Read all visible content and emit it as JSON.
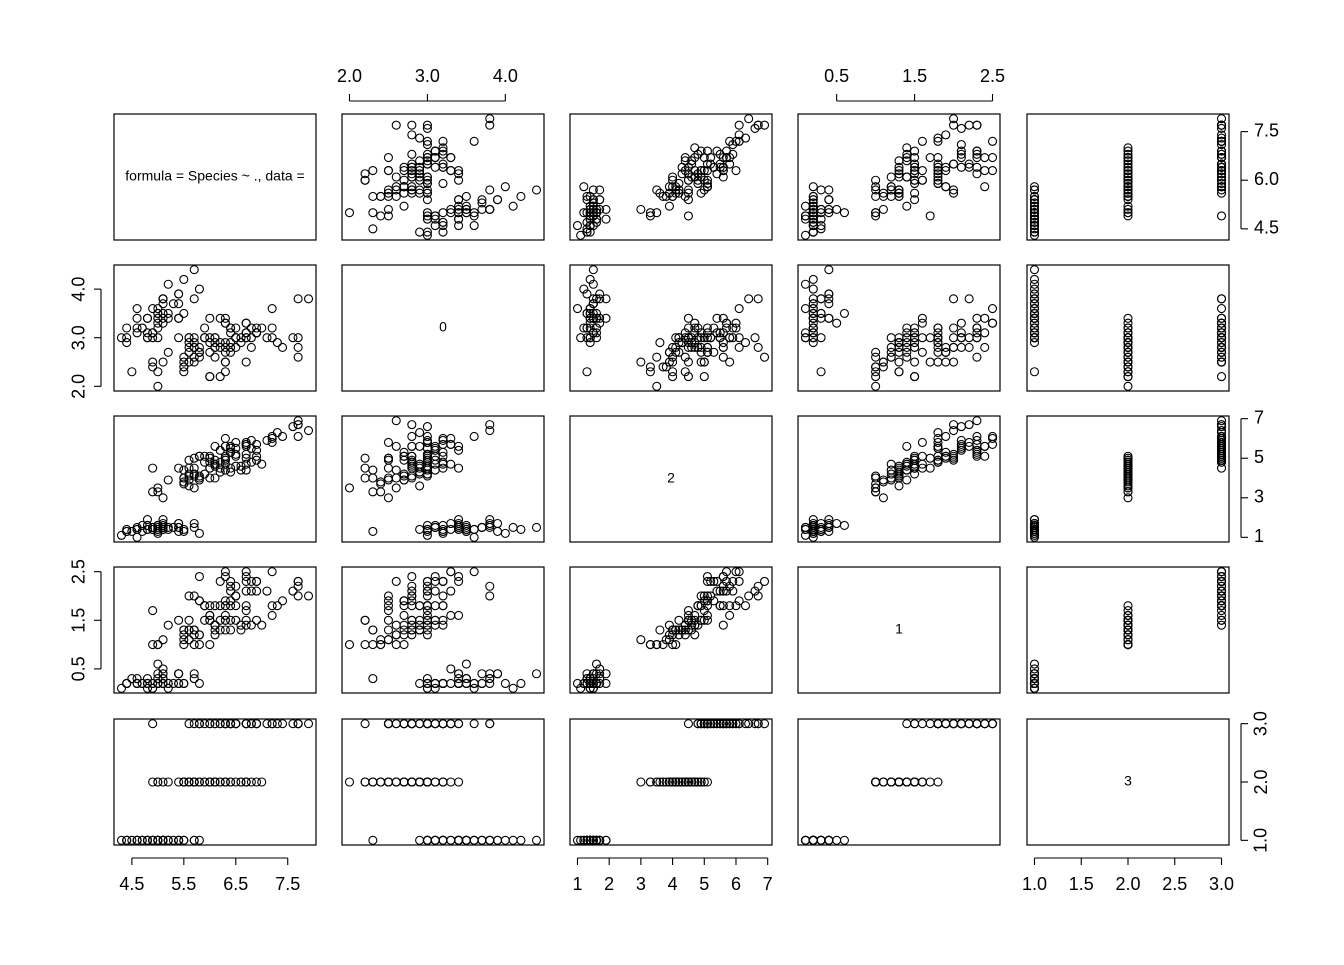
{
  "chart_data": {
    "type": "scatter_matrix",
    "diagonal_labels": [
      "formula = Species ~ ., data =",
      "0",
      "2",
      "1",
      "3"
    ],
    "variables": [
      {
        "lim": [
          4.156,
          8.044
        ],
        "xticks": [
          4.5,
          5.5,
          6.5,
          7.5
        ],
        "yticks": [
          4.5,
          {
            "value": 6,
            "label": "6.0"
          },
          7.5
        ],
        "values": [
          5.1,
          4.9,
          4.7,
          4.6,
          5.0,
          5.4,
          4.6,
          5.0,
          4.4,
          4.9,
          5.4,
          4.8,
          4.8,
          4.3,
          5.8,
          5.7,
          5.4,
          5.1,
          5.7,
          5.1,
          5.4,
          5.1,
          4.6,
          5.1,
          4.8,
          5.0,
          5.0,
          5.2,
          5.2,
          4.7,
          4.8,
          5.4,
          5.2,
          5.5,
          4.9,
          5.0,
          5.5,
          4.9,
          4.4,
          5.1,
          5.0,
          4.5,
          4.4,
          5.0,
          5.1,
          4.8,
          5.1,
          4.6,
          5.3,
          5.0,
          7.0,
          6.4,
          6.9,
          5.5,
          6.5,
          5.7,
          6.3,
          4.9,
          6.6,
          5.2,
          5.0,
          5.9,
          6.0,
          6.1,
          5.6,
          6.7,
          5.6,
          5.8,
          6.2,
          5.6,
          5.9,
          6.1,
          6.3,
          6.1,
          6.4,
          6.6,
          6.8,
          6.7,
          6.0,
          5.7,
          5.5,
          5.5,
          5.8,
          6.0,
          5.4,
          6.0,
          6.7,
          6.3,
          5.6,
          5.5,
          5.5,
          6.1,
          5.8,
          5.0,
          5.6,
          5.7,
          5.7,
          6.2,
          5.1,
          5.7,
          6.3,
          5.8,
          7.1,
          6.3,
          6.5,
          7.6,
          4.9,
          7.3,
          6.7,
          7.2,
          6.5,
          6.4,
          6.8,
          5.7,
          5.8,
          6.4,
          6.5,
          7.7,
          7.7,
          6.0,
          6.9,
          5.6,
          7.7,
          6.3,
          6.7,
          7.2,
          6.2,
          6.1,
          6.4,
          7.2,
          7.4,
          7.9,
          6.4,
          6.3,
          6.1,
          7.7,
          6.3,
          6.4,
          6.0,
          6.9,
          6.7,
          6.9,
          5.8,
          6.8,
          6.7,
          6.7,
          6.3,
          6.5,
          6.2,
          5.9
        ]
      },
      {
        "lim": [
          1.904,
          4.496
        ],
        "xticks": [
          {
            "value": 2,
            "label": "2.0"
          },
          {
            "value": 3,
            "label": "3.0"
          },
          {
            "value": 4,
            "label": "4.0"
          }
        ],
        "yticks": [
          {
            "value": 2,
            "label": "2.0"
          },
          {
            "value": 3,
            "label": "3.0"
          },
          {
            "value": 4,
            "label": "4.0"
          }
        ],
        "values": [
          3.5,
          3.0,
          3.2,
          3.1,
          3.6,
          3.9,
          3.4,
          3.4,
          2.9,
          3.1,
          3.7,
          3.4,
          3.0,
          3.0,
          4.0,
          4.4,
          3.9,
          3.5,
          3.8,
          3.8,
          3.4,
          3.7,
          3.6,
          3.3,
          3.4,
          3.0,
          3.4,
          3.5,
          3.4,
          3.2,
          3.1,
          3.4,
          4.1,
          4.2,
          3.1,
          3.2,
          3.5,
          3.6,
          3.0,
          3.4,
          3.5,
          2.3,
          3.2,
          3.5,
          3.8,
          3.0,
          3.8,
          3.2,
          3.7,
          3.3,
          3.2,
          3.2,
          3.1,
          2.3,
          2.8,
          2.8,
          3.3,
          2.4,
          2.9,
          2.7,
          2.0,
          3.0,
          2.2,
          2.9,
          2.9,
          3.1,
          3.0,
          2.7,
          2.2,
          2.5,
          3.2,
          2.8,
          2.5,
          2.8,
          2.9,
          3.0,
          2.8,
          3.0,
          2.9,
          2.6,
          2.4,
          2.4,
          2.7,
          2.7,
          3.0,
          3.4,
          3.1,
          2.3,
          3.0,
          2.5,
          2.6,
          3.0,
          2.6,
          2.3,
          2.7,
          3.0,
          2.9,
          2.9,
          2.5,
          2.8,
          3.3,
          2.7,
          3.0,
          2.9,
          3.0,
          3.0,
          2.5,
          2.9,
          2.5,
          3.6,
          3.2,
          2.7,
          3.0,
          2.5,
          2.8,
          3.2,
          3.0,
          3.8,
          2.6,
          2.2,
          3.2,
          2.8,
          2.8,
          2.7,
          3.3,
          3.2,
          2.8,
          3.0,
          2.8,
          3.0,
          2.8,
          3.8,
          2.8,
          2.8,
          2.6,
          3.0,
          3.4,
          3.1,
          3.0,
          3.1,
          3.1,
          3.1,
          2.7,
          3.2,
          3.3,
          3.0,
          2.5,
          3.0,
          3.4,
          3.0
        ]
      },
      {
        "lim": [
          0.764,
          7.136
        ],
        "xticks": [
          1,
          2,
          3,
          4,
          5,
          6,
          7
        ],
        "yticks": [
          1,
          3,
          5,
          7
        ],
        "values": [
          1.4,
          1.4,
          1.3,
          1.5,
          1.4,
          1.7,
          1.4,
          1.5,
          1.4,
          1.5,
          1.5,
          1.6,
          1.4,
          1.1,
          1.2,
          1.5,
          1.3,
          1.4,
          1.7,
          1.5,
          1.7,
          1.5,
          1.0,
          1.7,
          1.9,
          1.6,
          1.6,
          1.5,
          1.4,
          1.6,
          1.6,
          1.5,
          1.5,
          1.4,
          1.5,
          1.2,
          1.3,
          1.4,
          1.3,
          1.5,
          1.3,
          1.3,
          1.3,
          1.6,
          1.9,
          1.4,
          1.6,
          1.4,
          1.5,
          1.4,
          4.7,
          4.5,
          4.9,
          4.0,
          4.6,
          4.5,
          4.7,
          3.3,
          4.6,
          3.9,
          3.5,
          4.2,
          4.0,
          4.7,
          3.6,
          4.4,
          4.5,
          4.1,
          4.5,
          3.9,
          4.8,
          4.0,
          4.9,
          4.7,
          4.3,
          4.4,
          4.8,
          5.0,
          4.5,
          3.5,
          3.8,
          3.7,
          3.9,
          5.1,
          4.5,
          4.5,
          4.7,
          4.4,
          4.1,
          4.0,
          4.4,
          4.6,
          4.0,
          3.3,
          4.2,
          4.2,
          4.2,
          4.3,
          3.0,
          4.1,
          6.0,
          5.1,
          5.9,
          5.6,
          5.8,
          6.6,
          4.5,
          6.3,
          5.8,
          6.1,
          5.1,
          5.3,
          5.5,
          5.0,
          5.1,
          5.3,
          5.5,
          6.7,
          6.9,
          5.0,
          5.7,
          4.9,
          6.7,
          4.9,
          5.7,
          6.0,
          4.8,
          4.9,
          5.6,
          5.8,
          6.1,
          6.4,
          5.6,
          5.1,
          5.6,
          6.1,
          5.6,
          5.5,
          4.8,
          5.4,
          5.6,
          5.1,
          5.1,
          5.9,
          5.7,
          5.2,
          5.0,
          5.2,
          5.4,
          5.1
        ]
      },
      {
        "lim": [
          0.004,
          2.596
        ],
        "xticks": [
          0.5,
          1.5,
          2.5
        ],
        "yticks": [
          0.5,
          1.5,
          2.5
        ],
        "values": [
          0.2,
          0.2,
          0.2,
          0.2,
          0.2,
          0.4,
          0.3,
          0.2,
          0.2,
          0.1,
          0.2,
          0.2,
          0.1,
          0.1,
          0.2,
          0.4,
          0.4,
          0.3,
          0.3,
          0.3,
          0.2,
          0.4,
          0.2,
          0.5,
          0.2,
          0.2,
          0.4,
          0.2,
          0.2,
          0.2,
          0.2,
          0.4,
          0.1,
          0.2,
          0.2,
          0.2,
          0.2,
          0.1,
          0.2,
          0.2,
          0.3,
          0.3,
          0.2,
          0.6,
          0.4,
          0.3,
          0.2,
          0.2,
          0.2,
          0.2,
          1.4,
          1.5,
          1.5,
          1.3,
          1.5,
          1.3,
          1.6,
          1.0,
          1.3,
          1.4,
          1.0,
          1.5,
          1.0,
          1.4,
          1.3,
          1.4,
          1.5,
          1.0,
          1.5,
          1.1,
          1.8,
          1.3,
          1.5,
          1.2,
          1.3,
          1.4,
          1.4,
          1.7,
          1.5,
          1.0,
          1.1,
          1.0,
          1.2,
          1.6,
          1.5,
          1.6,
          1.5,
          1.3,
          1.3,
          1.3,
          1.2,
          1.4,
          1.2,
          1.0,
          1.3,
          1.2,
          1.3,
          1.3,
          1.1,
          1.3,
          2.5,
          1.9,
          2.1,
          1.8,
          2.2,
          2.1,
          1.7,
          1.8,
          1.8,
          2.5,
          2.0,
          1.9,
          2.1,
          2.0,
          2.4,
          2.3,
          1.8,
          2.2,
          2.3,
          1.5,
          2.3,
          2.0,
          2.0,
          1.8,
          2.1,
          1.8,
          1.8,
          1.8,
          2.1,
          1.6,
          1.9,
          2.0,
          2.2,
          1.5,
          1.4,
          2.3,
          2.4,
          1.8,
          1.8,
          2.1,
          2.4,
          2.3,
          1.9,
          2.3,
          2.5,
          2.3,
          1.9,
          2.0,
          2.3,
          1.8
        ]
      },
      {
        "lim": [
          0.92,
          3.08
        ],
        "xticks": [
          {
            "value": 1,
            "label": "1.0"
          },
          1.5,
          {
            "value": 2,
            "label": "2.0"
          },
          2.5,
          {
            "value": 3,
            "label": "3.0"
          }
        ],
        "yticks": [
          {
            "value": 1,
            "label": "1.0"
          },
          {
            "value": 2,
            "label": "2.0"
          },
          {
            "value": 3,
            "label": "3.0"
          }
        ],
        "values": [
          1,
          1,
          1,
          1,
          1,
          1,
          1,
          1,
          1,
          1,
          1,
          1,
          1,
          1,
          1,
          1,
          1,
          1,
          1,
          1,
          1,
          1,
          1,
          1,
          1,
          1,
          1,
          1,
          1,
          1,
          1,
          1,
          1,
          1,
          1,
          1,
          1,
          1,
          1,
          1,
          1,
          1,
          1,
          1,
          1,
          1,
          1,
          1,
          1,
          1,
          2,
          2,
          2,
          2,
          2,
          2,
          2,
          2,
          2,
          2,
          2,
          2,
          2,
          2,
          2,
          2,
          2,
          2,
          2,
          2,
          2,
          2,
          2,
          2,
          2,
          2,
          2,
          2,
          2,
          2,
          2,
          2,
          2,
          2,
          2,
          2,
          2,
          2,
          2,
          2,
          2,
          2,
          2,
          2,
          2,
          2,
          2,
          2,
          2,
          2,
          3,
          3,
          3,
          3,
          3,
          3,
          3,
          3,
          3,
          3,
          3,
          3,
          3,
          3,
          3,
          3,
          3,
          3,
          3,
          3,
          3,
          3,
          3,
          3,
          3,
          3,
          3,
          3,
          3,
          3,
          3,
          3,
          3,
          3,
          3,
          3,
          3,
          3,
          3,
          3,
          3,
          3,
          3,
          3,
          3,
          3,
          3,
          3,
          3,
          3
        ]
      }
    ]
  }
}
